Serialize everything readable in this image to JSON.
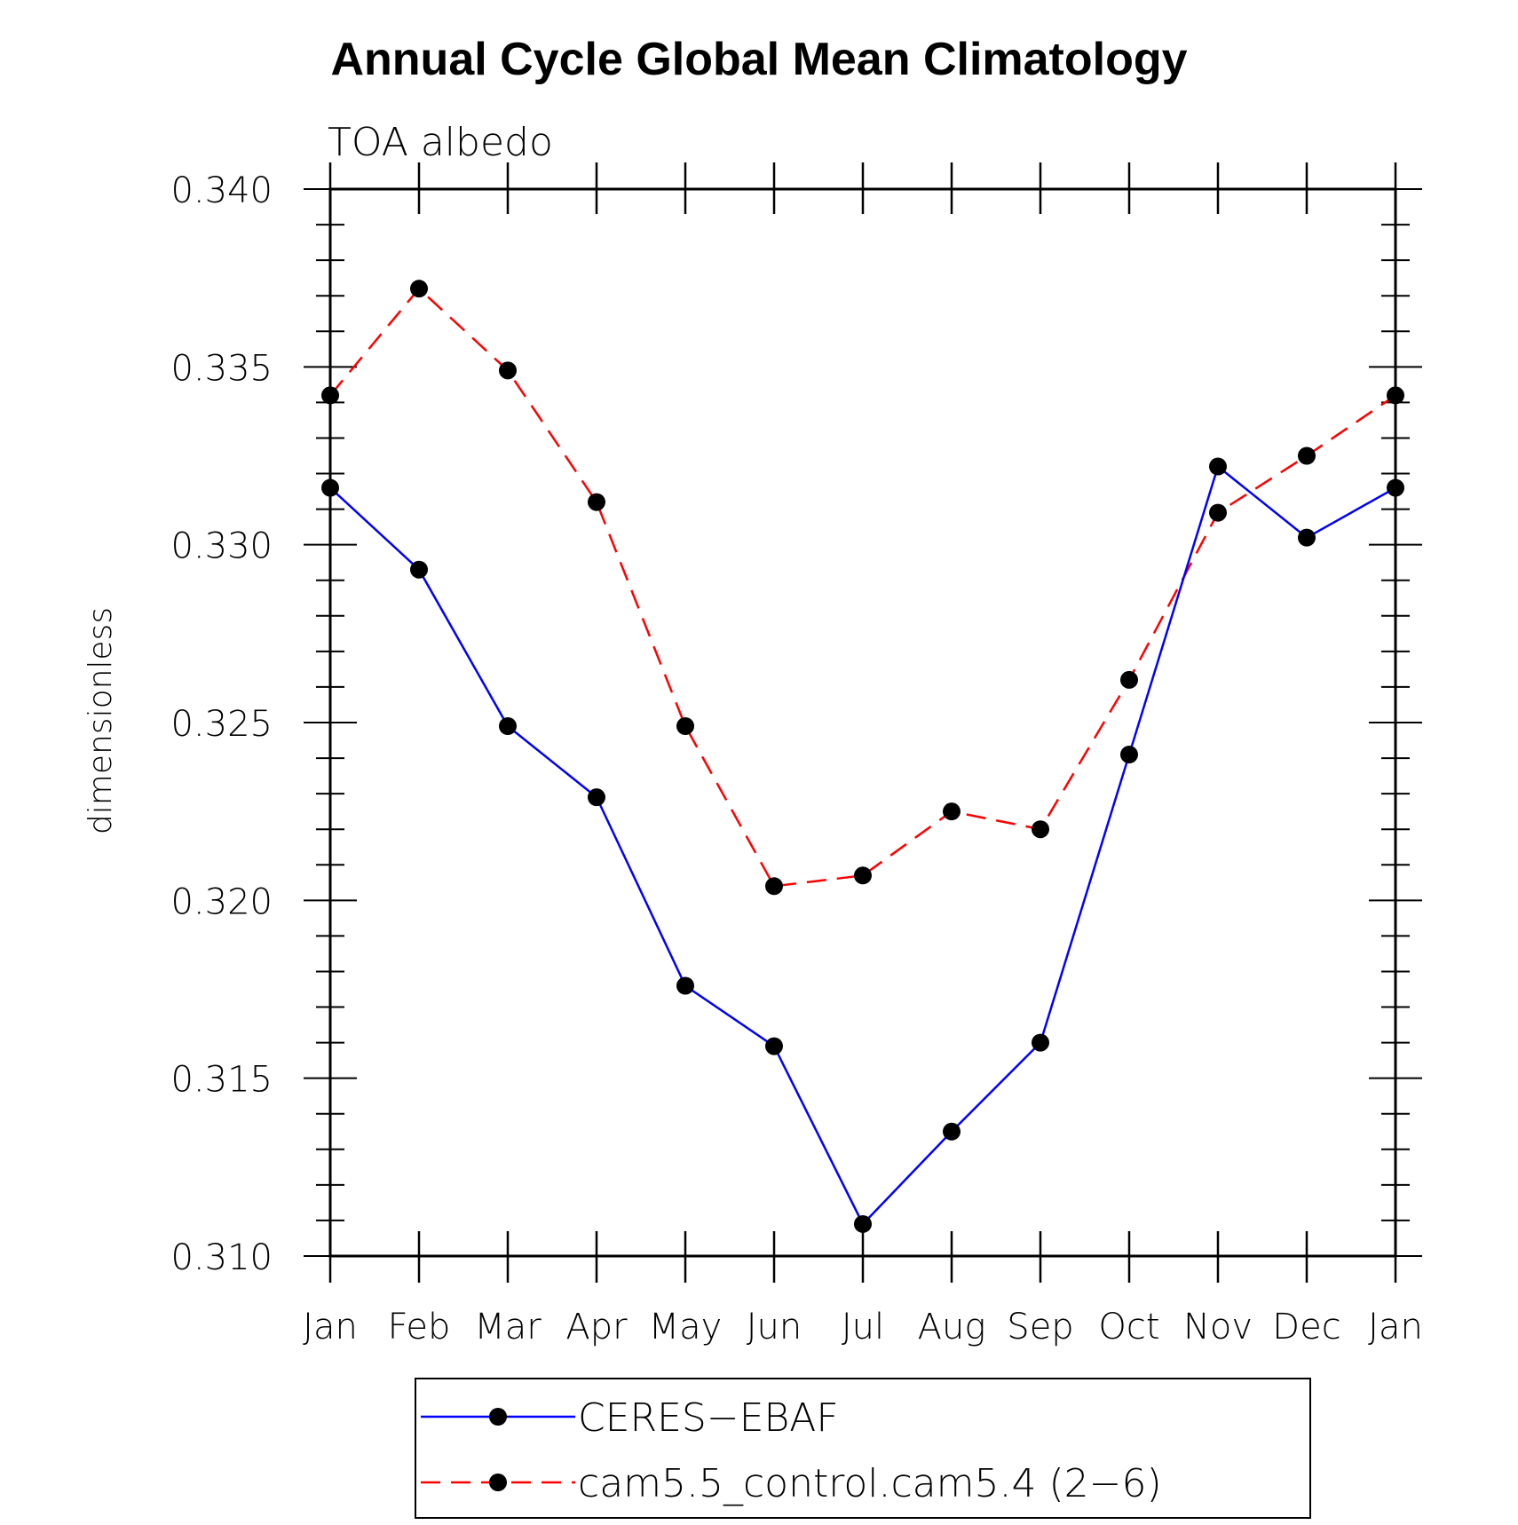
{
  "chart_data": {
    "type": "line",
    "title": "Annual Cycle Global Mean Climatology",
    "subtitle": "TOA albedo",
    "xlabel": "",
    "ylabel": "dimensionless",
    "categories": [
      "Jan",
      "Feb",
      "Mar",
      "Apr",
      "May",
      "Jun",
      "Jul",
      "Aug",
      "Sep",
      "Oct",
      "Nov",
      "Dec",
      "Jan"
    ],
    "ylim": [
      0.31,
      0.34
    ],
    "yticks": [
      "0.310",
      "0.315",
      "0.320",
      "0.325",
      "0.330",
      "0.335",
      "0.340"
    ],
    "ytick_values": [
      0.31,
      0.315,
      0.32,
      0.325,
      0.33,
      0.335,
      0.34
    ],
    "series": [
      {
        "name": "CERES-EBAF",
        "color": "#0000ff",
        "dash": "solid",
        "values": [
          0.3316,
          0.3293,
          0.3249,
          0.3229,
          0.3176,
          0.3159,
          0.3109,
          0.3135,
          0.316,
          0.3241,
          0.3322,
          0.3302,
          0.3316
        ]
      },
      {
        "name": "cam5.5_control.cam5.4 (2-6)",
        "color": "#ff0000",
        "dash": "dashed",
        "values": [
          0.3342,
          0.3372,
          0.3349,
          0.3312,
          0.3249,
          0.3204,
          0.3207,
          0.3225,
          0.322,
          0.3262,
          0.3309,
          0.3325,
          0.3342
        ]
      }
    ],
    "legend": {
      "position": "bottom",
      "entries": [
        "CERES−EBAF",
        "cam5.5_control.cam5.4 (2−6)"
      ]
    },
    "grid": false
  }
}
